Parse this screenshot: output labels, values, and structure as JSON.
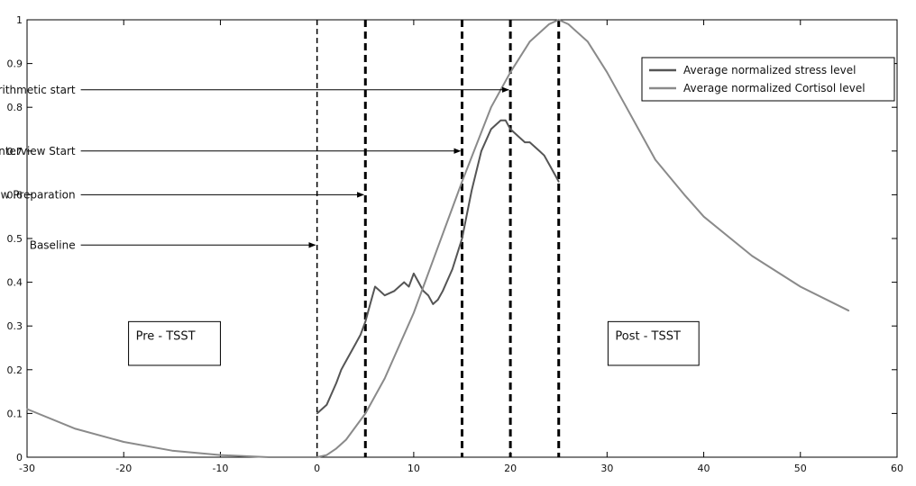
{
  "chart_data": {
    "type": "line",
    "title": "",
    "xlabel": "",
    "ylabel": "",
    "xlim": [
      -30,
      60
    ],
    "ylim": [
      0,
      1
    ],
    "xticks": [
      -30,
      -20,
      -10,
      0,
      10,
      20,
      30,
      40,
      50,
      60
    ],
    "yticks": [
      0,
      0.1,
      0.2,
      0.3,
      0.4,
      0.5,
      0.6,
      0.7,
      0.8,
      0.9,
      1
    ],
    "ytick_labels": [
      "0",
      "0.1",
      "0.2",
      "0.3",
      "0.4",
      "0.5",
      "0.6",
      "0.7",
      "0.8",
      "0.9",
      "1"
    ],
    "grid": false,
    "legend_position": "top-right",
    "colors": {
      "stress": "#555555",
      "cortisol": "#8a8a8a",
      "event_lines": "#000000"
    },
    "series": [
      {
        "name": "Average normalized stress level",
        "x": [
          0,
          1,
          2,
          2.5,
          3,
          4,
          4.5,
          5,
          5.5,
          6,
          6.5,
          7,
          8,
          9,
          9.5,
          10,
          10.5,
          11,
          11.5,
          12,
          12.5,
          13,
          14,
          15,
          16,
          17,
          18,
          18.5,
          19,
          19.5,
          20,
          20.5,
          21,
          21.5,
          22,
          22.5,
          23,
          23.5,
          24,
          24.5,
          25
        ],
        "y": [
          0.1,
          0.12,
          0.17,
          0.2,
          0.22,
          0.26,
          0.28,
          0.31,
          0.35,
          0.39,
          0.38,
          0.37,
          0.38,
          0.4,
          0.39,
          0.42,
          0.4,
          0.38,
          0.37,
          0.35,
          0.36,
          0.38,
          0.43,
          0.5,
          0.61,
          0.7,
          0.75,
          0.76,
          0.77,
          0.77,
          0.75,
          0.74,
          0.73,
          0.72,
          0.72,
          0.71,
          0.7,
          0.69,
          0.67,
          0.65,
          0.63
        ]
      },
      {
        "name": "Average normalized Cortisol level",
        "x": [
          -30,
          -25,
          -20,
          -15,
          -10,
          -5,
          0,
          1,
          2,
          3,
          5,
          7,
          10,
          12,
          15,
          18,
          20,
          22,
          24,
          25,
          26,
          28,
          30,
          32,
          35,
          38,
          40,
          45,
          50,
          55
        ],
        "y": [
          0.11,
          0.065,
          0.035,
          0.015,
          0.005,
          0.0,
          0.0,
          0.005,
          0.02,
          0.04,
          0.1,
          0.18,
          0.33,
          0.45,
          0.63,
          0.8,
          0.88,
          0.95,
          0.99,
          1.0,
          0.99,
          0.95,
          0.88,
          0.8,
          0.68,
          0.6,
          0.55,
          0.46,
          0.39,
          0.335
        ]
      }
    ],
    "event_lines": [
      0,
      5,
      15,
      20,
      25
    ],
    "annotations": [
      {
        "text": "Arithmetic start",
        "label_x": -25,
        "label_y": 0.84,
        "target_x": 20,
        "target_y": 0.84
      },
      {
        "text": "Interview Start",
        "label_x": -25,
        "label_y": 0.7,
        "target_x": 15,
        "target_y": 0.7
      },
      {
        "text": "Interview Preparation",
        "label_x": -25,
        "label_y": 0.6,
        "target_x": 5,
        "target_y": 0.6
      },
      {
        "text": "Baseline",
        "label_x": -25,
        "label_y": 0.485,
        "target_x": 0,
        "target_y": 0.485
      }
    ],
    "text_boxes": [
      {
        "text": "Pre -  TSST",
        "x0": -19.5,
        "x1": -10,
        "y0": 0.21,
        "y1": 0.31
      },
      {
        "text": "Post -  TSST",
        "x0": 30.1,
        "x1": 39.5,
        "y0": 0.21,
        "y1": 0.31
      }
    ]
  }
}
